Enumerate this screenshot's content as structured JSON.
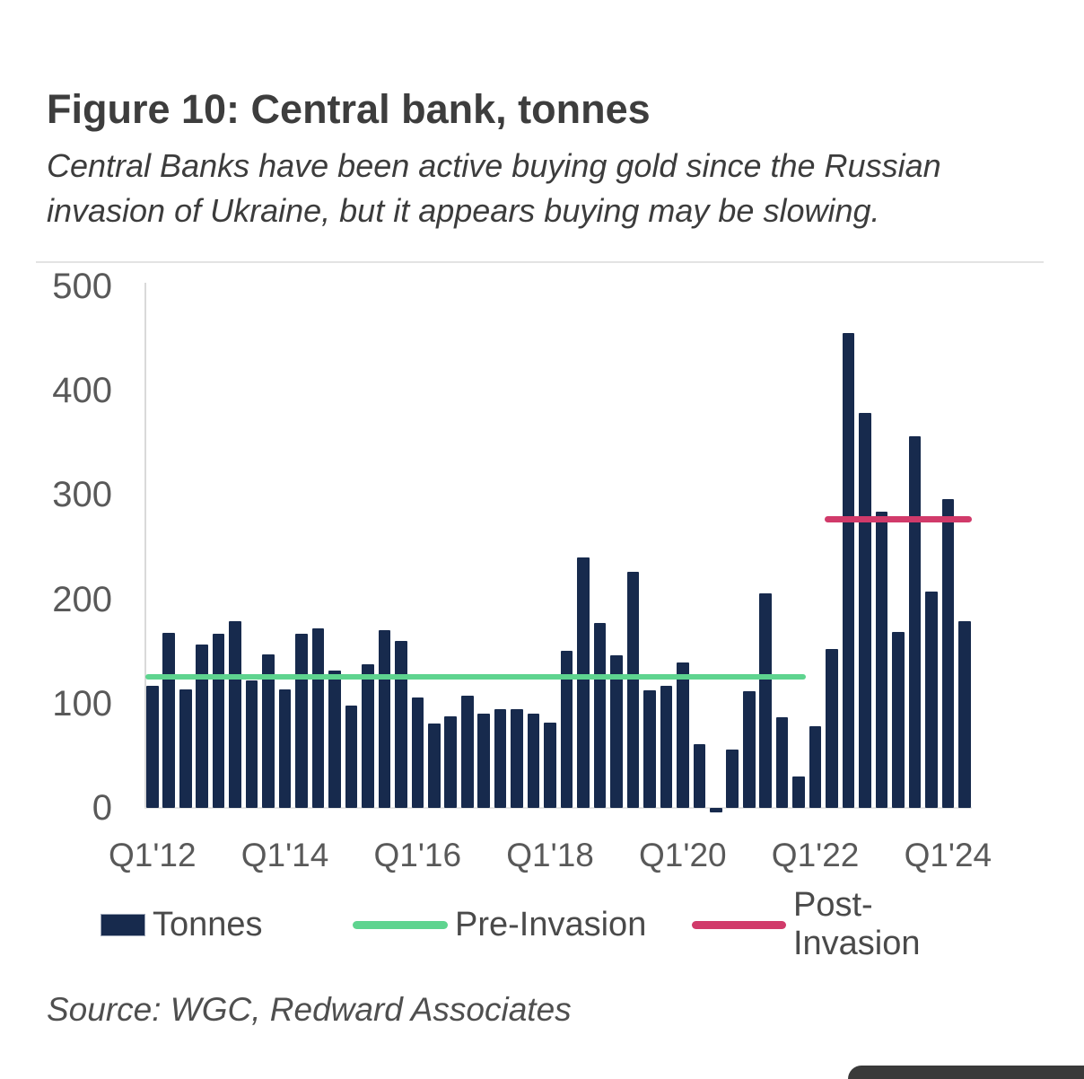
{
  "figure": {
    "title": "Figure 10: Central bank, tonnes",
    "subtitle_line1": "Central Banks have been active buying gold since the Russian",
    "subtitle_line2": "invasion of Ukraine, but it appears buying may be slowing.",
    "source": "Source: WGC, Redward Associates"
  },
  "chart_data": {
    "type": "bar",
    "title": "Figure 10: Central bank, tonnes",
    "xlabel": "",
    "ylabel": "",
    "ylim": [
      0,
      500
    ],
    "yticks": [
      0,
      100,
      200,
      300,
      400,
      500
    ],
    "xtick_labels_shown": [
      "Q1'12",
      "Q1'14",
      "Q1'16",
      "Q1'18",
      "Q1'20",
      "Q1'22",
      "Q1'24"
    ],
    "xtick_category_indices": [
      0,
      8,
      16,
      24,
      32,
      40,
      48
    ],
    "grid": "off",
    "legend_position": "bottom",
    "categories": [
      "Q1'12",
      "Q2'12",
      "Q3'12",
      "Q4'12",
      "Q1'13",
      "Q2'13",
      "Q3'13",
      "Q4'13",
      "Q1'14",
      "Q2'14",
      "Q3'14",
      "Q4'14",
      "Q1'15",
      "Q2'15",
      "Q3'15",
      "Q4'15",
      "Q1'16",
      "Q2'16",
      "Q3'16",
      "Q4'16",
      "Q1'17",
      "Q2'17",
      "Q3'17",
      "Q4'17",
      "Q1'18",
      "Q2'18",
      "Q3'18",
      "Q4'18",
      "Q1'19",
      "Q2'19",
      "Q3'19",
      "Q4'19",
      "Q1'20",
      "Q2'20",
      "Q3'20",
      "Q4'20",
      "Q1'21",
      "Q2'21",
      "Q3'21",
      "Q4'21",
      "Q1'22",
      "Q2'22",
      "Q3'22",
      "Q4'22",
      "Q1'23",
      "Q2'23",
      "Q3'23",
      "Q4'23",
      "Q1'24",
      "Q2'24"
    ],
    "series": [
      {
        "name": "Tonnes",
        "render": "bar",
        "color": "#172a4d",
        "values": [
          117,
          168,
          114,
          157,
          167,
          179,
          122,
          147,
          114,
          167,
          172,
          132,
          98,
          138,
          170,
          160,
          106,
          81,
          88,
          108,
          90,
          95,
          95,
          90,
          82,
          151,
          240,
          177,
          146,
          226,
          113,
          117,
          139,
          61,
          -4,
          56,
          112,
          206,
          87,
          30,
          78,
          152,
          455,
          379,
          284,
          169,
          356,
          207,
          296,
          179
        ]
      },
      {
        "name": "Pre-Invasion",
        "render": "hline",
        "color": "#5ed48f",
        "value": 126,
        "from_index": 0,
        "to_index": 39,
        "thickness": 6
      },
      {
        "name": "Post-Invasion",
        "render": "hline",
        "color": "#d13a6a",
        "value": 277,
        "from_index": 41,
        "to_index": 49,
        "thickness": 7
      }
    ]
  },
  "legend": {
    "items": [
      {
        "label": "Tonnes",
        "swatch": "bar",
        "color": "#172a4d",
        "x": 0
      },
      {
        "label": "Pre-Invasion",
        "swatch": "line",
        "color": "#5ed48f",
        "x": 281
      },
      {
        "label": "Post-Invasion",
        "swatch": "line",
        "color": "#d13a6a",
        "x": 659
      }
    ]
  },
  "overlay": {
    "corner_pill_color": "#3a3a3a"
  }
}
